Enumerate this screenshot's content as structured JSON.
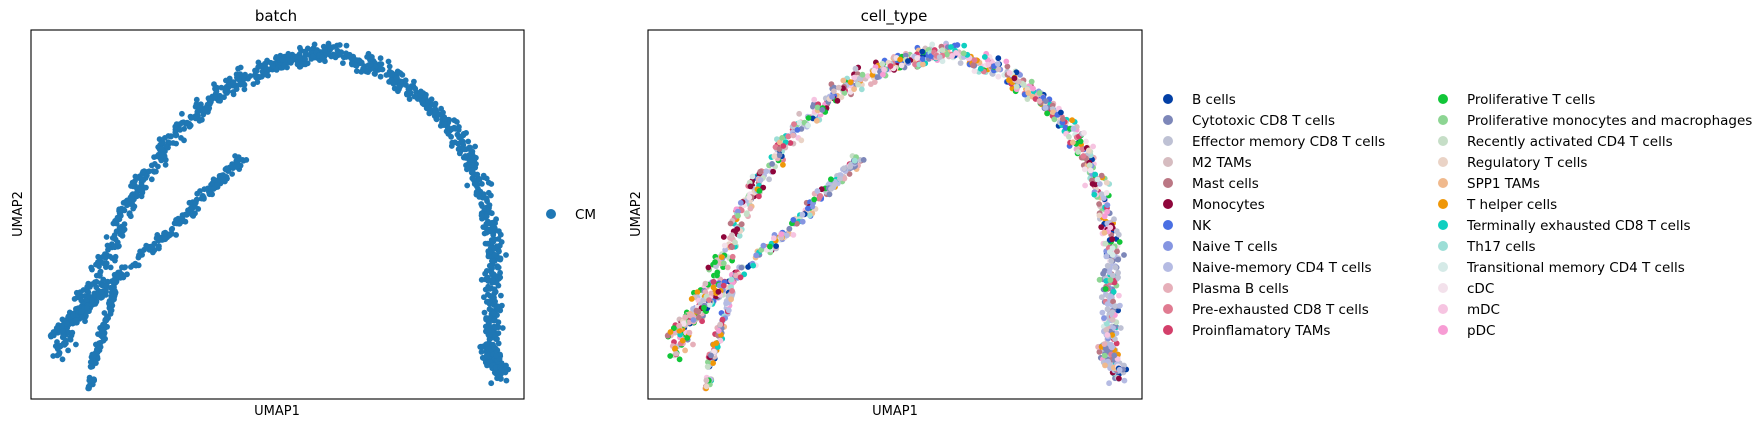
{
  "chart_data": [
    {
      "type": "scatter",
      "title": "batch",
      "xlabel": "UMAP1",
      "ylabel": "UMAP2",
      "grid": false,
      "legend_placement": "right",
      "legend": [
        {
          "name": "CM",
          "color": "#1f77b4"
        }
      ],
      "series": [
        {
          "name": "CM",
          "color": "#1f77b4"
        }
      ]
    },
    {
      "type": "scatter",
      "title": "cell_type",
      "xlabel": "UMAP1",
      "ylabel": "UMAP2",
      "grid": false,
      "legend_placement": "right",
      "legend_columns": 2,
      "legend": [
        {
          "name": "B cells",
          "color": "#023fa5"
        },
        {
          "name": "Cytotoxic CD8 T cells",
          "color": "#7d87b9"
        },
        {
          "name": "Effector memory CD8 T cells",
          "color": "#bec1d4"
        },
        {
          "name": "M2 TAMs",
          "color": "#d6bcc0"
        },
        {
          "name": "Mast cells",
          "color": "#bb7784"
        },
        {
          "name": "Monocytes",
          "color": "#8e063b"
        },
        {
          "name": "NK",
          "color": "#4a6fe3"
        },
        {
          "name": "Naive T cells",
          "color": "#8595e1"
        },
        {
          "name": "Naive-memory CD4 T cells",
          "color": "#b5bbe3"
        },
        {
          "name": "Plasma B cells",
          "color": "#e6afb9"
        },
        {
          "name": "Pre-exhausted CD8 T cells",
          "color": "#e07b91"
        },
        {
          "name": "Proinflamatory TAMs",
          "color": "#d33f6a"
        },
        {
          "name": "Proliferative T cells",
          "color": "#11c638"
        },
        {
          "name": "Proliferative monocytes and macrophages",
          "color": "#8dd593"
        },
        {
          "name": "Recently activated CD4 T cells",
          "color": "#c6dec7"
        },
        {
          "name": "Regulatory T cells",
          "color": "#ead3c6"
        },
        {
          "name": "SPP1 TAMs",
          "color": "#f0b98d"
        },
        {
          "name": "T helper cells",
          "color": "#ef9708"
        },
        {
          "name": "Terminally exhausted CD8 T cells",
          "color": "#0fcfc0"
        },
        {
          "name": "Th17 cells",
          "color": "#9cded6"
        },
        {
          "name": "Transitional memory CD4 T cells",
          "color": "#d5eae7"
        },
        {
          "name": "cDC",
          "color": "#f3e1eb"
        },
        {
          "name": "mDC",
          "color": "#f6c4e1"
        },
        {
          "name": "pDC",
          "color": "#f79cd4"
        }
      ]
    }
  ]
}
